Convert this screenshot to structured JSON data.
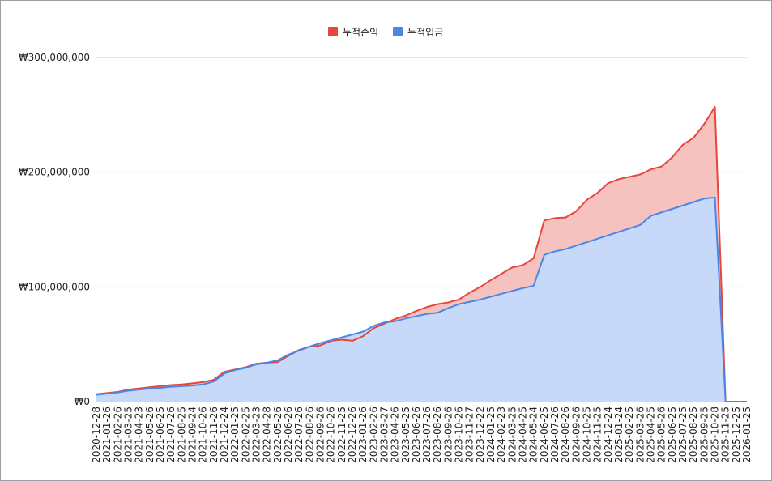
{
  "chart_data": {
    "type": "area",
    "title": "",
    "xlabel": "",
    "ylabel": "",
    "ylim": [
      0,
      300000000
    ],
    "yticks": [
      {
        "value": 0,
        "label": "₩0"
      },
      {
        "value": 100000000,
        "label": "₩100,000,000"
      },
      {
        "value": 200000000,
        "label": "₩200,000,000"
      },
      {
        "value": 300000000,
        "label": "₩300,000,000"
      }
    ],
    "grid": true,
    "legend_position": "top-center",
    "x": [
      "2020-12-28",
      "2021-01-26",
      "2021-02-26",
      "2021-03-25",
      "2021-04-23",
      "2021-05-26",
      "2021-06-25",
      "2021-07-26",
      "2021-08-25",
      "2021-09-24",
      "2021-10-26",
      "2021-11-26",
      "2021-12-24",
      "2022-01-25",
      "2022-02-25",
      "2022-03-23",
      "2022-04-28",
      "2022-05-26",
      "2022-06-26",
      "2022-07-26",
      "2022-08-26",
      "2022-09-26",
      "2022-10-26",
      "2022-11-25",
      "2022-12-26",
      "2023-01-26",
      "2023-02-26",
      "2023-03-27",
      "2023-04-26",
      "2023-05-25",
      "2023-06-26",
      "2023-07-26",
      "2023-08-26",
      "2023-09-26",
      "2023-10-26",
      "2023-11-27",
      "2023-12-22",
      "2024-01-25",
      "2024-02-23",
      "2024-03-25",
      "2024-04-25",
      "2024-05-24",
      "2024-06-25",
      "2024-07-26",
      "2024-08-26",
      "2024-09-26",
      "2024-10-25",
      "2024-11-25",
      "2024-12-24",
      "2025-01-24",
      "2025-02-25",
      "2025-03-26",
      "2025-04-25",
      "2025-05-26",
      "2025-06-25",
      "2025-07-25",
      "2025-08-25",
      "2025-09-25",
      "2025-10-28",
      "2025-11-25",
      "2025-12-25",
      "2026-01-25"
    ],
    "series": [
      {
        "name": "누적손익",
        "color": "#e8453c",
        "fill": "#f6c2bf",
        "values": [
          6500000,
          7500000,
          8500000,
          10500000,
          11500000,
          12500000,
          13500000,
          14500000,
          15000000,
          16000000,
          17000000,
          19000000,
          26000000,
          28000000,
          30000000,
          33000000,
          34000000,
          34500000,
          40000000,
          45000000,
          48000000,
          49000000,
          53000000,
          54000000,
          53000000,
          57000000,
          64000000,
          68000000,
          72000000,
          75000000,
          79000000,
          82500000,
          85000000,
          86500000,
          89000000,
          95000000,
          100000000,
          106000000,
          111500000,
          117000000,
          119000000,
          125000000,
          158000000,
          160000000,
          160500000,
          166000000,
          176000000,
          182000000,
          190500000,
          194000000,
          196000000,
          198000000,
          202500000,
          205000000,
          213000000,
          224000000,
          230000000,
          242000000,
          257000000,
          0,
          0,
          0
        ]
      },
      {
        "name": "누적입금",
        "color": "#4a86e8",
        "fill": "#c6d9f8",
        "values": [
          6000000,
          7000000,
          8000000,
          9500000,
          10500000,
          11500000,
          12000000,
          13000000,
          13500000,
          14000000,
          15000000,
          17500000,
          24500000,
          27500000,
          29500000,
          32500000,
          34000000,
          36000000,
          41000000,
          44500000,
          48000000,
          51000000,
          53500000,
          56000000,
          58500000,
          61000000,
          66000000,
          69000000,
          70000000,
          72500000,
          74500000,
          76500000,
          77500000,
          81500000,
          85000000,
          87000000,
          89000000,
          91500000,
          94000000,
          96500000,
          99000000,
          101000000,
          128000000,
          131000000,
          133000000,
          136000000,
          139000000,
          142000000,
          145000000,
          148000000,
          151000000,
          154000000,
          162000000,
          165000000,
          168000000,
          171000000,
          174000000,
          177000000,
          178000000,
          0,
          0,
          0
        ]
      }
    ]
  }
}
